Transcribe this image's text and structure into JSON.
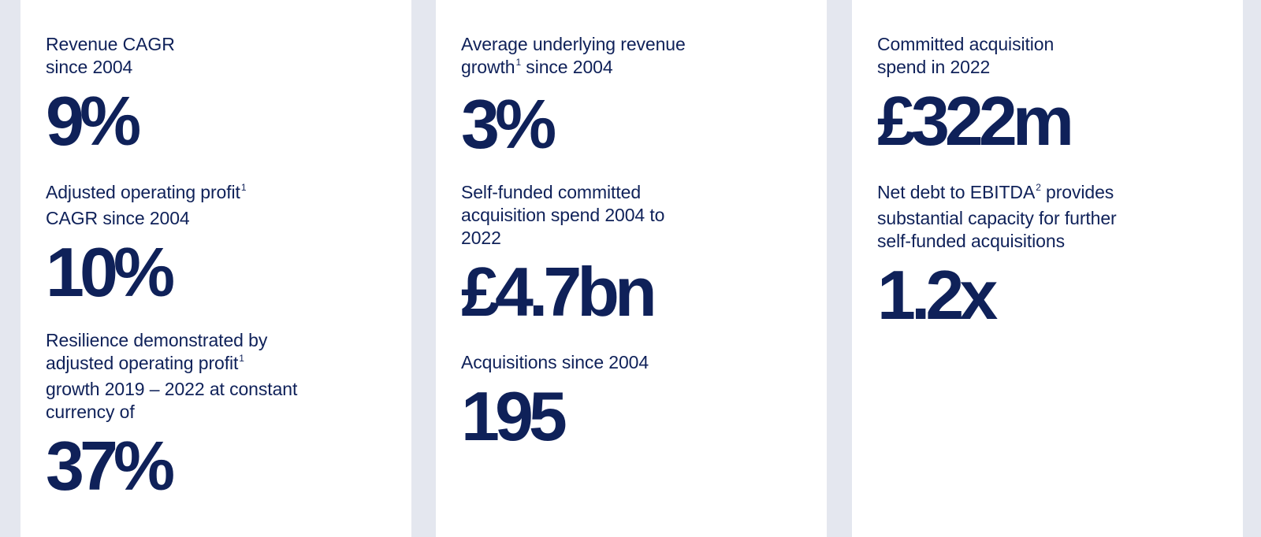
{
  "panels": [
    {
      "stats": [
        {
          "label_lines": [
            "Revenue CAGR",
            "since 2004"
          ],
          "footnote": "",
          "value": "9%"
        },
        {
          "label_lines": [
            "Adjusted operating profit",
            "CAGR since 2004"
          ],
          "footnote": "1",
          "value": "10%"
        },
        {
          "label_lines": [
            "Resilience demonstrated by",
            "adjusted operating profit",
            "growth 2019 – 2022 at constant",
            "currency of"
          ],
          "footnote": "1",
          "value": "37%"
        }
      ]
    },
    {
      "stats": [
        {
          "label_lines": [
            "Average underlying revenue",
            "growth",
            " since 2004"
          ],
          "footnote": "1",
          "value": "3%"
        },
        {
          "label_lines": [
            "Self-funded committed",
            "acquisition spend 2004 to",
            "2022"
          ],
          "footnote": "",
          "value": "£4.7bn"
        },
        {
          "label_lines": [
            "Acquisitions since 2004"
          ],
          "footnote": "",
          "value": "195"
        }
      ]
    },
    {
      "stats": [
        {
          "label_lines": [
            "Committed acquisition",
            "spend in 2022"
          ],
          "footnote": "",
          "value": "£322m"
        },
        {
          "label_lines": [
            "Net debt to EBITDA",
            " provides",
            "substantial capacity for further",
            "self-funded acquisitions"
          ],
          "footnote": "2",
          "value": "1.2x"
        }
      ]
    }
  ]
}
